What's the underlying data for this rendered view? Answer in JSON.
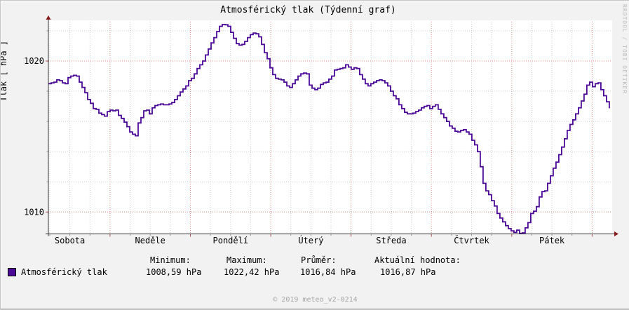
{
  "title": "Atmosférický tlak (Týdenní graf)",
  "watermark": "RRDTOOL / TOBI OETIKER",
  "footer": "© 2019 meteo_v2-0214",
  "legend": {
    "series_label": "Atmosférický tlak",
    "swatch_color": "#4B0A97",
    "stats": [
      {
        "label": "Minimum:",
        "value": "1008,59 hPa"
      },
      {
        "label": "Maximum:",
        "value": "1022,42 hPa"
      },
      {
        "label": "Průměr:",
        "value": "1016,84 hPa"
      },
      {
        "label": "Aktuální hodnota:",
        "value": "1016,87 hPa"
      }
    ]
  },
  "chart_data": {
    "type": "line",
    "title": "Atmosférický tlak (Týdenní graf)",
    "xlabel": "",
    "ylabel": "Tlak [ hPa ]",
    "categories": [
      "Sobota",
      "Neděle",
      "Pondělí",
      "Úterý",
      "Středa",
      "Čtvrtek",
      "Pátek"
    ],
    "ylim": [
      1008.55,
      1022.6
    ],
    "yticks_major": [
      1010,
      1020
    ],
    "yticks_minor": [
      1012,
      1014,
      1016,
      1018,
      1022
    ],
    "grid": true,
    "legend_position": "bottom",
    "x_total_hours": 168,
    "first_day_boundary_hour": 18.42,
    "minor_x_step_hours": 6,
    "t_start_h": 0,
    "t_step_h": 0.8378,
    "series": [
      {
        "name": "Atmosférický tlak",
        "unit": "hPa",
        "color": "#4B0A97",
        "min": 1008.59,
        "max": 1022.42,
        "avg": 1016.84,
        "last": 1016.87,
        "values": [
          1018.5,
          1018.55,
          1018.6,
          1018.75,
          1018.7,
          1018.55,
          1018.5,
          1018.9,
          1019.0,
          1019.05,
          1019.0,
          1018.6,
          1018.25,
          1017.9,
          1017.45,
          1017.2,
          1016.85,
          1016.8,
          1016.55,
          1016.45,
          1016.35,
          1016.65,
          1016.75,
          1016.7,
          1016.75,
          1016.4,
          1016.2,
          1015.95,
          1015.65,
          1015.3,
          1015.15,
          1015.05,
          1015.9,
          1016.25,
          1016.7,
          1016.75,
          1016.5,
          1016.9,
          1017.05,
          1017.1,
          1017.15,
          1017.1,
          1017.1,
          1017.15,
          1017.25,
          1017.45,
          1017.7,
          1017.95,
          1018.15,
          1018.35,
          1018.7,
          1018.85,
          1019.15,
          1019.5,
          1019.75,
          1020.0,
          1020.4,
          1020.8,
          1021.2,
          1021.55,
          1021.95,
          1022.3,
          1022.42,
          1022.4,
          1022.3,
          1021.9,
          1021.5,
          1021.15,
          1021.05,
          1021.1,
          1021.3,
          1021.55,
          1021.75,
          1021.85,
          1021.8,
          1021.6,
          1021.1,
          1020.55,
          1020.15,
          1019.55,
          1019.1,
          1018.85,
          1018.8,
          1018.75,
          1018.6,
          1018.35,
          1018.25,
          1018.5,
          1018.75,
          1019.0,
          1019.15,
          1019.2,
          1019.15,
          1018.4,
          1018.2,
          1018.1,
          1018.2,
          1018.45,
          1018.55,
          1018.6,
          1018.8,
          1019.0,
          1019.4,
          1019.45,
          1019.5,
          1019.55,
          1019.75,
          1019.6,
          1019.45,
          1019.55,
          1019.5,
          1019.1,
          1018.8,
          1018.5,
          1018.35,
          1018.5,
          1018.6,
          1018.7,
          1018.75,
          1018.7,
          1018.55,
          1018.35,
          1018.0,
          1017.7,
          1017.5,
          1017.1,
          1016.85,
          1016.6,
          1016.5,
          1016.5,
          1016.55,
          1016.65,
          1016.75,
          1016.9,
          1017.0,
          1017.05,
          1016.85,
          1017.0,
          1017.1,
          1016.8,
          1016.5,
          1016.25,
          1016.0,
          1015.7,
          1015.55,
          1015.35,
          1015.3,
          1015.4,
          1015.45,
          1015.3,
          1015.15,
          1014.75,
          1014.45,
          1014.0,
          1013.0,
          1011.9,
          1011.4,
          1011.15,
          1010.75,
          1010.4,
          1009.9,
          1009.6,
          1009.35,
          1009.1,
          1008.9,
          1008.75,
          1008.65,
          1008.8,
          1008.59,
          1008.62,
          1008.95,
          1009.3,
          1009.9,
          1010.05,
          1010.35,
          1011.0,
          1011.35,
          1011.4,
          1011.9,
          1012.4,
          1012.9,
          1013.3,
          1013.8,
          1014.3,
          1014.85,
          1015.4,
          1015.8,
          1016.1,
          1016.5,
          1016.9,
          1017.35,
          1017.8,
          1018.4,
          1018.6,
          1018.3,
          1018.5,
          1018.55,
          1018.1,
          1017.7,
          1017.3,
          1016.87
        ]
      }
    ],
    "colors": {
      "background": "#f2f2f2",
      "canvas": "#ffffff",
      "axis": "#333333",
      "arrow": "#871a1a",
      "major_grid": "#e08a8a",
      "minor_grid": "#cfcfcf",
      "series": "#4B0A97",
      "text": "#000000"
    }
  }
}
